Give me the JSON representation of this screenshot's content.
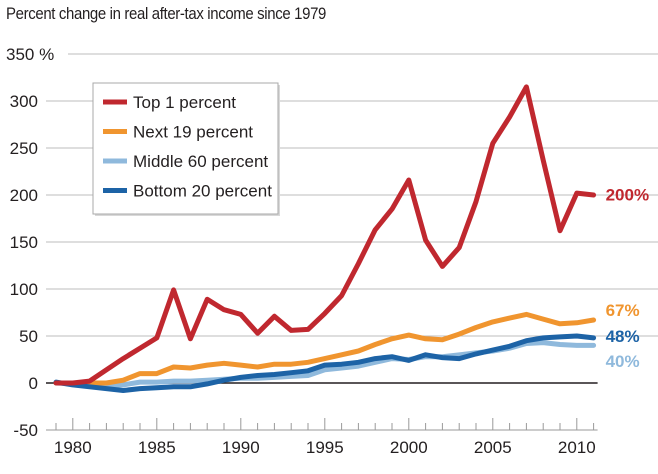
{
  "chart_data": {
    "type": "line",
    "title": "Percent change in real after-tax income since 1979",
    "xlabel": "",
    "ylabel": "",
    "ylim": [
      -50,
      350
    ],
    "xlim": [
      1979,
      2011
    ],
    "y_ticks": [
      350,
      300,
      250,
      200,
      150,
      100,
      50,
      0,
      -50
    ],
    "y_tick_labels": [
      "350 %",
      "300",
      "250",
      "200",
      "150",
      "100",
      "50",
      "0",
      "-50"
    ],
    "x_tick_labels": [
      "1980",
      "1985",
      "1990",
      "1995",
      "2000",
      "2005",
      "2010"
    ],
    "x_tick_values": [
      1980,
      1985,
      1990,
      1995,
      2000,
      2005,
      2010
    ],
    "grid": true,
    "legend_position": "top-left",
    "x": [
      1979,
      1980,
      1981,
      1982,
      1983,
      1984,
      1985,
      1986,
      1987,
      1988,
      1989,
      1990,
      1991,
      1992,
      1993,
      1994,
      1995,
      1996,
      1997,
      1998,
      1999,
      2000,
      2001,
      2002,
      2003,
      2004,
      2005,
      2006,
      2007,
      2008,
      2009,
      2010,
      2011
    ],
    "series": [
      {
        "name": "Top 1 percent",
        "color": "#c0282f",
        "end_label": "200%",
        "values": [
          0,
          0,
          2,
          14,
          26,
          37,
          48,
          99,
          47,
          89,
          78,
          73,
          53,
          71,
          56,
          57,
          74,
          93,
          127,
          163,
          185,
          216,
          152,
          124,
          144,
          193,
          255,
          283,
          315,
          237,
          162,
          202,
          200
        ]
      },
      {
        "name": "Next 19 percent",
        "color": "#f0952f",
        "end_label": "67%",
        "values": [
          0,
          0,
          0,
          0,
          3,
          10,
          10,
          17,
          16,
          19,
          21,
          19,
          17,
          20,
          20,
          22,
          26,
          30,
          34,
          41,
          47,
          51,
          47,
          46,
          52,
          59,
          65,
          69,
          73,
          68,
          63,
          64,
          67
        ]
      },
      {
        "name": "Middle 60 percent",
        "color": "#8fb9dc",
        "end_label": "40%",
        "values": [
          0,
          -1,
          -2,
          -3,
          -2,
          1,
          1,
          2,
          2,
          3,
          4,
          5,
          5,
          6,
          7,
          8,
          14,
          16,
          18,
          22,
          26,
          25,
          28,
          28,
          30,
          32,
          34,
          37,
          42,
          43,
          41,
          40,
          40
        ]
      },
      {
        "name": "Bottom 20 percent",
        "color": "#1d63a6",
        "end_label": "48%",
        "values": [
          1,
          -2,
          -4,
          -6,
          -8,
          -6,
          -5,
          -4,
          -4,
          -1,
          3,
          6,
          8,
          9,
          11,
          13,
          19,
          20,
          22,
          26,
          28,
          24,
          30,
          27,
          26,
          31,
          35,
          39,
          45,
          48,
          49,
          50,
          48
        ]
      }
    ]
  }
}
